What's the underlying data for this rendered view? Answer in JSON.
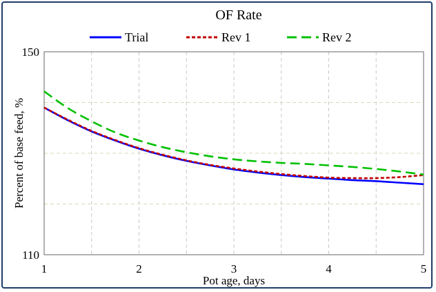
{
  "chart_data": {
    "type": "line",
    "title": "OF Rate",
    "xlabel": "Pot age, days",
    "ylabel": "Percent of base feed,  %",
    "xlim": [
      1,
      5
    ],
    "ylim": [
      110,
      150
    ],
    "x_ticks": [
      "1",
      "2",
      "3",
      "4",
      "5"
    ],
    "y_ticks": [
      "110",
      "150"
    ],
    "grid": "dashed, vertical every 0.5 days, horizontal every 10 %",
    "legend_position": "top",
    "series": [
      {
        "name": "Trial",
        "color": "#0000ff",
        "dash": "solid",
        "x": [
          1.0,
          1.25,
          1.5,
          1.75,
          2.0,
          2.25,
          2.5,
          2.75,
          3.0,
          3.25,
          3.5,
          3.75,
          4.0,
          4.25,
          4.5,
          4.75,
          5.0
        ],
        "y": [
          139.0,
          136.5,
          134.3,
          132.5,
          130.9,
          129.6,
          128.5,
          127.6,
          126.8,
          126.2,
          125.7,
          125.3,
          125.0,
          124.7,
          124.5,
          124.2,
          123.9
        ]
      },
      {
        "name": "Rev 1",
        "color": "#c00000",
        "dash": "short",
        "x": [
          1.0,
          1.25,
          1.5,
          1.75,
          2.0,
          2.25,
          2.5,
          2.75,
          3.0,
          3.25,
          3.5,
          3.75,
          4.0,
          4.25,
          4.5,
          4.75,
          5.0
        ],
        "y": [
          139.0,
          136.6,
          134.4,
          132.6,
          131.0,
          129.7,
          128.6,
          127.7,
          127.0,
          126.4,
          125.9,
          125.5,
          125.2,
          125.1,
          125.1,
          125.3,
          125.7
        ]
      },
      {
        "name": "Rev 2",
        "color": "#00c000",
        "dash": "long",
        "x": [
          1.0,
          1.25,
          1.5,
          1.75,
          2.0,
          2.25,
          2.5,
          2.75,
          3.0,
          3.25,
          3.5,
          3.75,
          4.0,
          4.25,
          4.5,
          4.75,
          5.0
        ],
        "y": [
          142.2,
          138.9,
          136.3,
          134.1,
          132.5,
          131.2,
          130.2,
          129.4,
          128.8,
          128.4,
          128.1,
          127.9,
          127.6,
          127.3,
          126.9,
          126.4,
          125.8
        ]
      }
    ]
  }
}
